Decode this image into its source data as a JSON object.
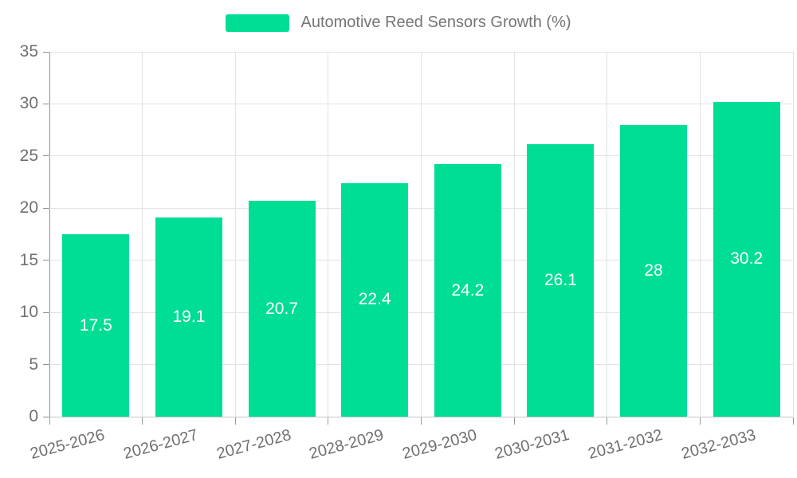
{
  "chart_data": {
    "type": "bar",
    "title": "Automotive Reed Sensors Growth (%)",
    "categories": [
      "2025-2026",
      "2026-2027",
      "2027-2028",
      "2028-2029",
      "2029-2030",
      "2030-2031",
      "2031-2032",
      "2032-2033"
    ],
    "series": [
      {
        "name": "Automotive Reed Sensors Growth (%)",
        "values": [
          17.5,
          19.1,
          20.7,
          22.4,
          24.2,
          26.1,
          28,
          30.2
        ],
        "value_labels": [
          "17.5",
          "19.1",
          "20.7",
          "22.4",
          "24.2",
          "26.1",
          "28",
          "30.2"
        ]
      }
    ],
    "xlabel": "",
    "ylabel": "",
    "ylim": [
      0,
      35
    ],
    "yticks": [
      0,
      5,
      10,
      15,
      20,
      25,
      30,
      35
    ],
    "ytick_labels": [
      "0",
      "5",
      "10",
      "15",
      "20",
      "25",
      "30",
      "35"
    ],
    "grid": "horizontal and vertical",
    "legend_position": "top-center",
    "bar_color": "#00dd94",
    "value_label_color": "#ffffff"
  },
  "legend": {
    "label": "Automotive Reed Sensors Growth (%)",
    "swatch_color": "#00dd94"
  }
}
